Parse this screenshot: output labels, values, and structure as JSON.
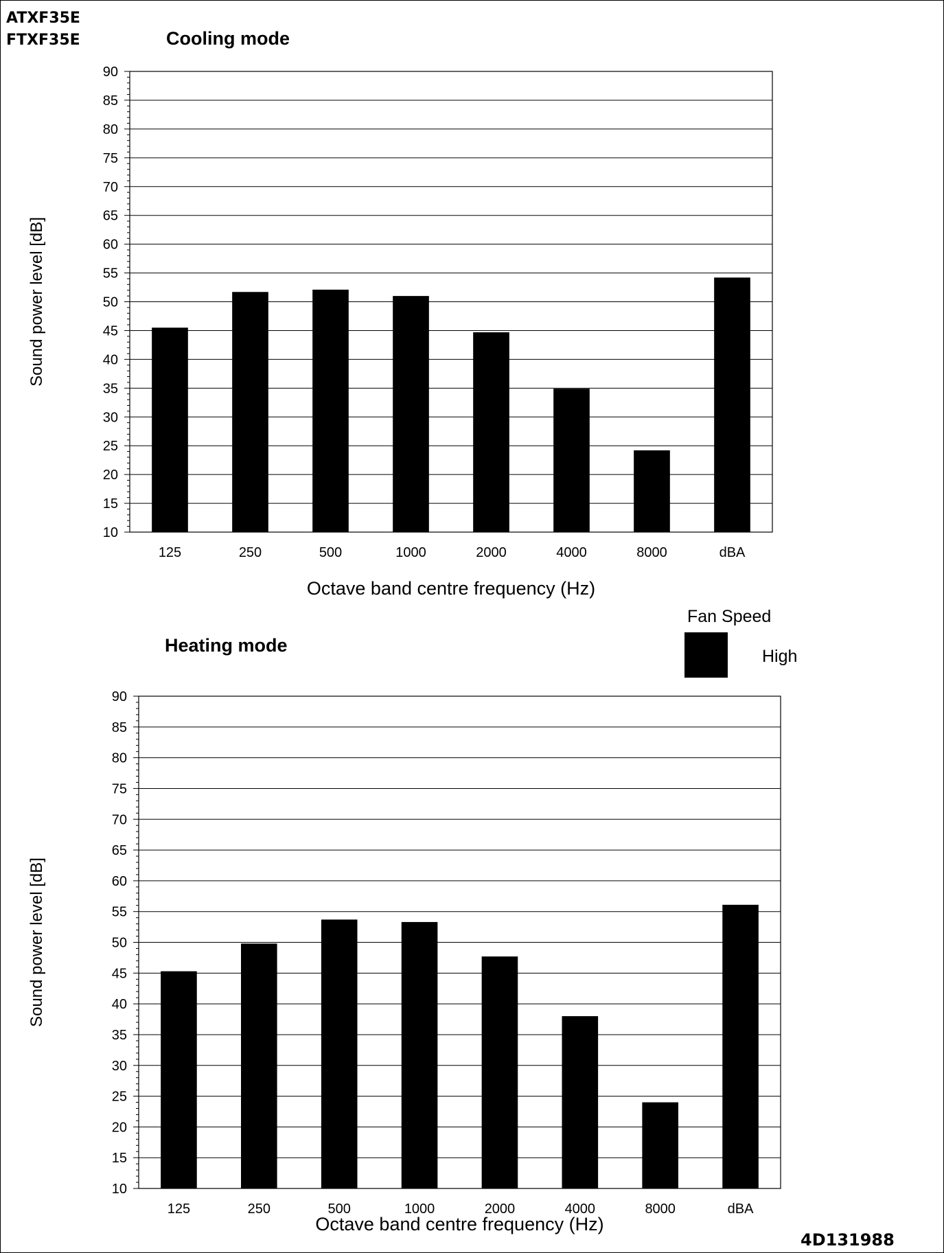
{
  "header": {
    "model_line_1": "ATXF35E",
    "model_line_2": "FTXF35E",
    "document_code": "4D131988"
  },
  "legend": {
    "title": "Fan Speed",
    "series_label": "High",
    "color": "#000000"
  },
  "chart_data": [
    {
      "type": "bar",
      "title": "Cooling mode",
      "xlabel": "Octave band centre frequency (Hz)",
      "ylabel": "Sound power level [dB]",
      "ylim": [
        10,
        90
      ],
      "yticks": [
        10,
        15,
        20,
        25,
        30,
        35,
        40,
        45,
        50,
        55,
        60,
        65,
        70,
        75,
        80,
        85,
        90
      ],
      "grid": true,
      "categories": [
        "125",
        "250",
        "500",
        "1000",
        "2000",
        "4000",
        "8000",
        "dBA"
      ],
      "series": [
        {
          "name": "High",
          "color": "#000000",
          "values": [
            45.5,
            51.7,
            52.1,
            51.0,
            44.7,
            34.9,
            24.2,
            54.2
          ]
        }
      ]
    },
    {
      "type": "bar",
      "title": "Heating mode",
      "xlabel": "Octave band centre frequency (Hz)",
      "ylabel": "Sound power level [dB]",
      "ylim": [
        10,
        90
      ],
      "yticks": [
        10,
        15,
        20,
        25,
        30,
        35,
        40,
        45,
        50,
        55,
        60,
        65,
        70,
        75,
        80,
        85,
        90
      ],
      "grid": true,
      "categories": [
        "125",
        "250",
        "500",
        "1000",
        "2000",
        "4000",
        "8000",
        "dBA"
      ],
      "series": [
        {
          "name": "High",
          "color": "#000000",
          "values": [
            45.3,
            49.8,
            53.7,
            53.3,
            47.7,
            38.0,
            24.0,
            56.1
          ]
        }
      ]
    }
  ]
}
